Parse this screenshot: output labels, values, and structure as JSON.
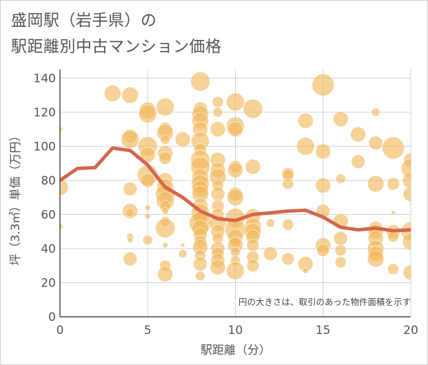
{
  "title_line1": "盛岡駅（岩手県）の",
  "title_line2": "駅距離別中古マンション価格",
  "chart_data": {
    "type": "scatter",
    "xlabel": "駅距離（分）",
    "ylabel": "坪（3.3㎡）単価（万円）",
    "xlim": [
      0,
      20
    ],
    "ylim": [
      0,
      145
    ],
    "xticks": [
      0,
      5,
      10,
      15,
      20
    ],
    "yticks": [
      0,
      20,
      40,
      60,
      80,
      100,
      120,
      140
    ],
    "grid": true,
    "annotation": "円の大きさは、取引のあった物件面積を示す",
    "colors": {
      "bubble": "#f0b659",
      "line": "#d4664c"
    },
    "trend_line": {
      "x": [
        0,
        1,
        2,
        3,
        4,
        5,
        6,
        7,
        8,
        9,
        10,
        11,
        12,
        13,
        14,
        15,
        16,
        17,
        18,
        19,
        20
      ],
      "y": [
        80,
        87,
        87.5,
        99,
        97.5,
        89,
        76,
        70,
        62,
        57.5,
        56.5,
        60,
        61,
        62,
        62.5,
        58.5,
        52.5,
        51,
        52,
        50.5,
        51
      ]
    },
    "points": [
      {
        "x": 0,
        "y": 110,
        "s": 4
      },
      {
        "x": 0,
        "y": 76,
        "s": 12
      },
      {
        "x": 0,
        "y": 53,
        "s": 4
      },
      {
        "x": 3,
        "y": 131,
        "s": 12
      },
      {
        "x": 4,
        "y": 130,
        "s": 12
      },
      {
        "x": 4,
        "y": 106,
        "s": 10
      },
      {
        "x": 4,
        "y": 104,
        "s": 13
      },
      {
        "x": 4,
        "y": 75,
        "s": 10
      },
      {
        "x": 4,
        "y": 62,
        "s": 11
      },
      {
        "x": 4,
        "y": 61,
        "s": 6
      },
      {
        "x": 4,
        "y": 47,
        "s": 5
      },
      {
        "x": 4,
        "y": 45,
        "s": 4
      },
      {
        "x": 4,
        "y": 34,
        "s": 10
      },
      {
        "x": 5,
        "y": 121,
        "s": 12
      },
      {
        "x": 5,
        "y": 119,
        "s": 13
      },
      {
        "x": 5,
        "y": 100,
        "s": 14
      },
      {
        "x": 5,
        "y": 95,
        "s": 11
      },
      {
        "x": 5,
        "y": 83,
        "s": 15
      },
      {
        "x": 5,
        "y": 80,
        "s": 10
      },
      {
        "x": 5,
        "y": 64,
        "s": 4
      },
      {
        "x": 5,
        "y": 59,
        "s": 4
      },
      {
        "x": 5,
        "y": 45,
        "s": 7
      },
      {
        "x": 6,
        "y": 123,
        "s": 13
      },
      {
        "x": 6,
        "y": 110,
        "s": 10
      },
      {
        "x": 6,
        "y": 108,
        "s": 12
      },
      {
        "x": 6,
        "y": 104,
        "s": 7
      },
      {
        "x": 6,
        "y": 96,
        "s": 11
      },
      {
        "x": 6,
        "y": 93,
        "s": 9
      },
      {
        "x": 6,
        "y": 80,
        "s": 11
      },
      {
        "x": 6,
        "y": 76,
        "s": 12
      },
      {
        "x": 6,
        "y": 72,
        "s": 14
      },
      {
        "x": 6,
        "y": 68,
        "s": 13
      },
      {
        "x": 6,
        "y": 65,
        "s": 8
      },
      {
        "x": 6,
        "y": 62,
        "s": 5
      },
      {
        "x": 6,
        "y": 56,
        "s": 7
      },
      {
        "x": 6,
        "y": 52,
        "s": 14
      },
      {
        "x": 6,
        "y": 42,
        "s": 4
      },
      {
        "x": 6,
        "y": 30,
        "s": 8
      },
      {
        "x": 6,
        "y": 25,
        "s": 11
      },
      {
        "x": 7,
        "y": 104,
        "s": 11
      },
      {
        "x": 7,
        "y": 42,
        "s": 3
      },
      {
        "x": 7,
        "y": 37,
        "s": 6
      },
      {
        "x": 8,
        "y": 138,
        "s": 14
      },
      {
        "x": 8,
        "y": 122,
        "s": 10
      },
      {
        "x": 8,
        "y": 119,
        "s": 12
      },
      {
        "x": 8,
        "y": 115,
        "s": 12
      },
      {
        "x": 8,
        "y": 110,
        "s": 11
      },
      {
        "x": 8,
        "y": 103,
        "s": 13
      },
      {
        "x": 8,
        "y": 98,
        "s": 9
      },
      {
        "x": 8,
        "y": 92,
        "s": 14
      },
      {
        "x": 8,
        "y": 88,
        "s": 14
      },
      {
        "x": 8,
        "y": 82,
        "s": 12
      },
      {
        "x": 8,
        "y": 78,
        "s": 13
      },
      {
        "x": 8,
        "y": 75,
        "s": 12
      },
      {
        "x": 8,
        "y": 72,
        "s": 12
      },
      {
        "x": 8,
        "y": 65,
        "s": 11
      },
      {
        "x": 8,
        "y": 61,
        "s": 13
      },
      {
        "x": 8,
        "y": 58,
        "s": 10
      },
      {
        "x": 8,
        "y": 55,
        "s": 16
      },
      {
        "x": 8,
        "y": 52,
        "s": 12
      },
      {
        "x": 8,
        "y": 48,
        "s": 10
      },
      {
        "x": 8,
        "y": 44,
        "s": 9
      },
      {
        "x": 8,
        "y": 41,
        "s": 11
      },
      {
        "x": 8,
        "y": 36,
        "s": 8
      },
      {
        "x": 8,
        "y": 31,
        "s": 10
      },
      {
        "x": 8,
        "y": 24,
        "s": 7
      },
      {
        "x": 9,
        "y": 126,
        "s": 8
      },
      {
        "x": 9,
        "y": 120,
        "s": 7
      },
      {
        "x": 9,
        "y": 110,
        "s": 11
      },
      {
        "x": 9,
        "y": 92,
        "s": 11
      },
      {
        "x": 9,
        "y": 86,
        "s": 11
      },
      {
        "x": 9,
        "y": 82,
        "s": 12
      },
      {
        "x": 9,
        "y": 77,
        "s": 8
      },
      {
        "x": 9,
        "y": 72,
        "s": 10
      },
      {
        "x": 9,
        "y": 65,
        "s": 9
      },
      {
        "x": 9,
        "y": 60,
        "s": 9
      },
      {
        "x": 9,
        "y": 55,
        "s": 12
      },
      {
        "x": 9,
        "y": 50,
        "s": 10
      },
      {
        "x": 9,
        "y": 46,
        "s": 8
      },
      {
        "x": 9,
        "y": 40,
        "s": 10
      },
      {
        "x": 9,
        "y": 37,
        "s": 9
      },
      {
        "x": 9,
        "y": 33,
        "s": 10
      },
      {
        "x": 9,
        "y": 29,
        "s": 11
      },
      {
        "x": 10,
        "y": 126,
        "s": 13
      },
      {
        "x": 10,
        "y": 112,
        "s": 13
      },
      {
        "x": 10,
        "y": 110,
        "s": 11
      },
      {
        "x": 10,
        "y": 88,
        "s": 9
      },
      {
        "x": 10,
        "y": 86,
        "s": 11
      },
      {
        "x": 10,
        "y": 72,
        "s": 10
      },
      {
        "x": 10,
        "y": 70,
        "s": 12
      },
      {
        "x": 10,
        "y": 58,
        "s": 14
      },
      {
        "x": 10,
        "y": 51,
        "s": 15
      },
      {
        "x": 10,
        "y": 47,
        "s": 11
      },
      {
        "x": 10,
        "y": 44,
        "s": 8
      },
      {
        "x": 10,
        "y": 42,
        "s": 11
      },
      {
        "x": 10,
        "y": 38,
        "s": 7
      },
      {
        "x": 10,
        "y": 33,
        "s": 7
      },
      {
        "x": 10,
        "y": 27,
        "s": 13
      },
      {
        "x": 11,
        "y": 122,
        "s": 14
      },
      {
        "x": 11,
        "y": 88,
        "s": 11
      },
      {
        "x": 11,
        "y": 59,
        "s": 11
      },
      {
        "x": 11,
        "y": 53,
        "s": 12
      },
      {
        "x": 11,
        "y": 50,
        "s": 12
      },
      {
        "x": 11,
        "y": 47,
        "s": 10
      },
      {
        "x": 11,
        "y": 42,
        "s": 9
      },
      {
        "x": 11,
        "y": 35,
        "s": 9
      },
      {
        "x": 11,
        "y": 30,
        "s": 9
      },
      {
        "x": 12,
        "y": 55,
        "s": 6
      },
      {
        "x": 12,
        "y": 37,
        "s": 10
      },
      {
        "x": 13,
        "y": 84,
        "s": 9
      },
      {
        "x": 13,
        "y": 83,
        "s": 8
      },
      {
        "x": 13,
        "y": 78,
        "s": 8
      },
      {
        "x": 13,
        "y": 54,
        "s": 8
      },
      {
        "x": 13,
        "y": 34,
        "s": 9
      },
      {
        "x": 14,
        "y": 115,
        "s": 11
      },
      {
        "x": 14,
        "y": 100,
        "s": 13
      },
      {
        "x": 14,
        "y": 31,
        "s": 11
      },
      {
        "x": 14,
        "y": 27,
        "s": 4
      },
      {
        "x": 15,
        "y": 136,
        "s": 16
      },
      {
        "x": 15,
        "y": 97,
        "s": 11
      },
      {
        "x": 15,
        "y": 77,
        "s": 11
      },
      {
        "x": 15,
        "y": 62,
        "s": 10
      },
      {
        "x": 15,
        "y": 42,
        "s": 11
      },
      {
        "x": 15,
        "y": 39,
        "s": 9
      },
      {
        "x": 16,
        "y": 116,
        "s": 11
      },
      {
        "x": 16,
        "y": 81,
        "s": 7
      },
      {
        "x": 16,
        "y": 56,
        "s": 11
      },
      {
        "x": 16,
        "y": 46,
        "s": 10
      },
      {
        "x": 16,
        "y": 39,
        "s": 8
      },
      {
        "x": 16,
        "y": 32,
        "s": 8
      },
      {
        "x": 17,
        "y": 107,
        "s": 11
      },
      {
        "x": 17,
        "y": 91,
        "s": 10
      },
      {
        "x": 18,
        "y": 120,
        "s": 6
      },
      {
        "x": 18,
        "y": 102,
        "s": 10
      },
      {
        "x": 18,
        "y": 78,
        "s": 12
      },
      {
        "x": 18,
        "y": 52,
        "s": 10
      },
      {
        "x": 18,
        "y": 50,
        "s": 11
      },
      {
        "x": 18,
        "y": 46,
        "s": 11
      },
      {
        "x": 18,
        "y": 40,
        "s": 12
      },
      {
        "x": 18,
        "y": 37,
        "s": 11
      },
      {
        "x": 18,
        "y": 34,
        "s": 12
      },
      {
        "x": 19,
        "y": 99,
        "s": 16
      },
      {
        "x": 19,
        "y": 78,
        "s": 9
      },
      {
        "x": 19,
        "y": 61,
        "s": 3
      },
      {
        "x": 19,
        "y": 50,
        "s": 10
      },
      {
        "x": 19,
        "y": 47,
        "s": 8
      },
      {
        "x": 19,
        "y": 28,
        "s": 8
      },
      {
        "x": 20,
        "y": 92,
        "s": 10
      },
      {
        "x": 20,
        "y": 87,
        "s": 14
      },
      {
        "x": 20,
        "y": 80,
        "s": 12
      },
      {
        "x": 20,
        "y": 72,
        "s": 11
      },
      {
        "x": 20,
        "y": 50,
        "s": 14
      },
      {
        "x": 20,
        "y": 44,
        "s": 12
      },
      {
        "x": 20,
        "y": 26,
        "s": 11
      }
    ]
  }
}
